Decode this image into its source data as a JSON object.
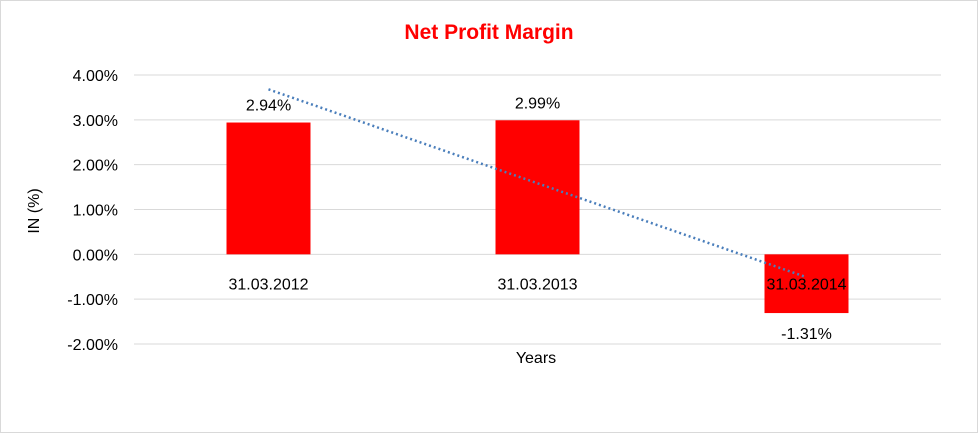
{
  "chart_data": {
    "type": "bar",
    "title": "Net Profit Margin",
    "xlabel": "Years",
    "ylabel": "IN (%)",
    "categories": [
      "31.03.2012",
      "31.03.2013",
      "31.03.2014"
    ],
    "series": [
      {
        "values": [
          2.94,
          2.99,
          -1.31
        ]
      }
    ],
    "data_labels": [
      "2.94%",
      "2.99%",
      "-1.31%"
    ],
    "yticks": [
      "4.00%",
      "3.00%",
      "2.00%",
      "1.00%",
      "0.00%",
      "-1.00%",
      "-2.00%"
    ],
    "ylim": [
      -2,
      4
    ],
    "grid": true,
    "legend": "none",
    "trendline": {
      "type": "linear",
      "style": "dotted",
      "start": 3.68,
      "end": -0.51
    },
    "colors": {
      "bar": "#ff0000",
      "title": "#ff0000",
      "trend": "#4a7ebb",
      "grid": "#d9d9d9"
    }
  }
}
